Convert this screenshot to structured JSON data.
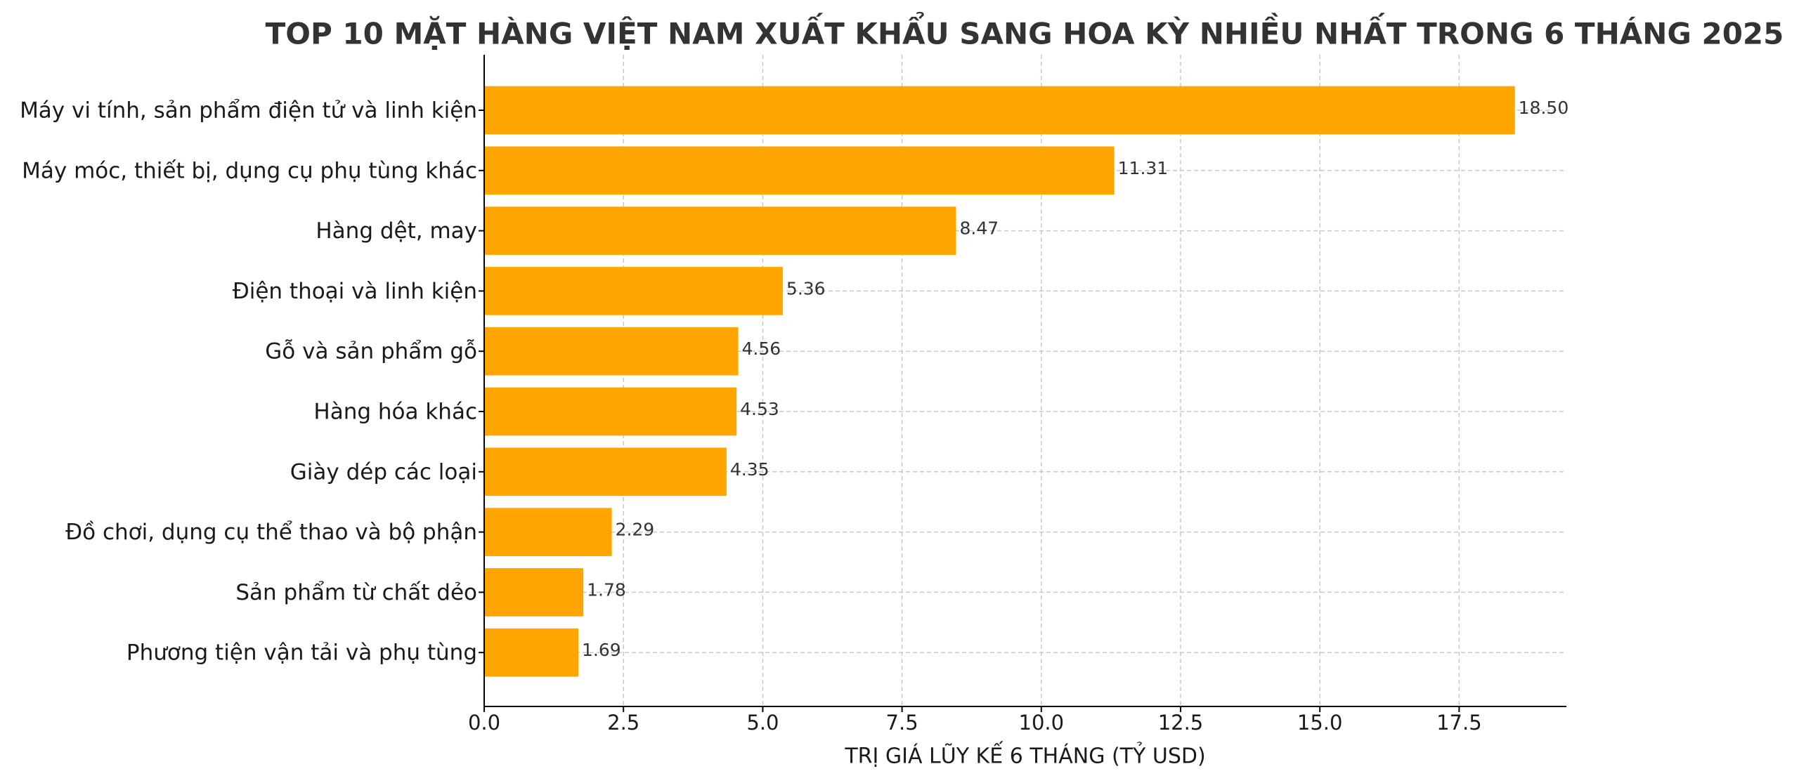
{
  "chart_data": {
    "type": "barh",
    "title": "TOP 10 MẶT HÀNG VIỆT NAM XUẤT KHẨU SANG HOA KỲ NHIỀU NHẤT TRONG 6 THÁNG 2025",
    "x_label": "TRỊ GIÁ LŨY KẾ 6 THÁNG (TỶ USD)",
    "categories": [
      "Máy vi tính, sản phẩm điện tử và linh kiện",
      "Máy móc, thiết bị, dụng cụ phụ tùng khác",
      "Hàng dệt, may",
      "Điện thoại và linh kiện",
      "Gỗ và sản phẩm gỗ",
      "Hàng hóa khác",
      "Giày dép các loại",
      "Đồ chơi, dụng cụ thể thao và bộ phận",
      "Sản phẩm từ chất dẻo",
      "Phương tiện vận tải và phụ tùng"
    ],
    "values": [
      18.5,
      11.31,
      8.47,
      5.36,
      4.56,
      4.53,
      4.35,
      2.29,
      1.78,
      1.69
    ],
    "value_labels": [
      "18.50",
      "11.31",
      "8.47",
      "5.36",
      "4.56",
      "4.53",
      "4.35",
      "2.29",
      "1.78",
      "1.69"
    ],
    "color": "#FFA500",
    "xlim": [
      0,
      19.425
    ],
    "xticks": [
      {
        "value": 0,
        "label": "0.0"
      },
      2.5,
      {
        "value": 5,
        "label": "5.0"
      },
      7.5,
      {
        "value": 10,
        "label": "10.0"
      },
      12.5,
      {
        "value": 15,
        "label": "15.0"
      },
      17.5
    ],
    "grid": true
  }
}
